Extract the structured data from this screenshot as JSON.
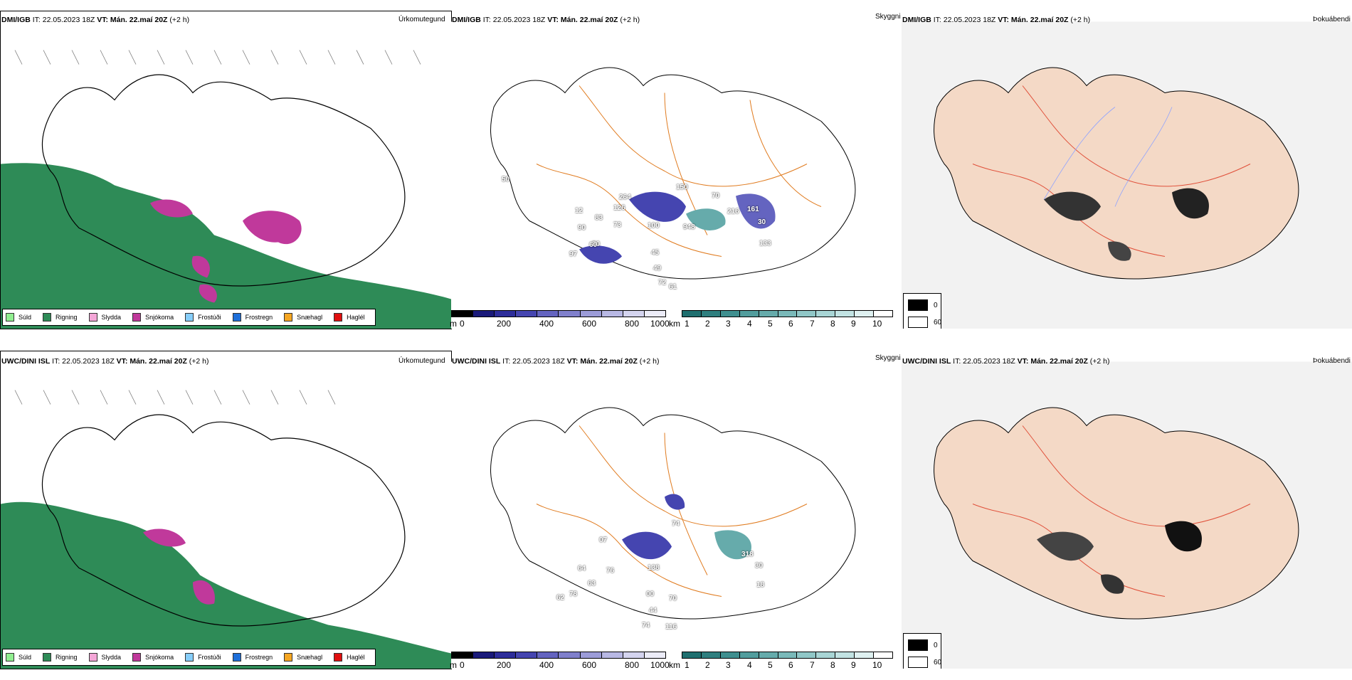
{
  "rows": [
    {
      "model_label": "DMI/IGB",
      "init": "IT: 22.05.2023 18Z",
      "valid": "VT: Mán. 22.maí 20Z",
      "lead": "(+2 h)"
    },
    {
      "model_label": "UWC/DINI ISL",
      "init": "IT: 22.05.2023 18Z",
      "valid": "VT: Mán. 22.maí 20Z",
      "lead": "(+2 h)"
    }
  ],
  "panel_titles": {
    "precip_type": "Úrkomutegund",
    "visibility": "Skyggni",
    "fog": "Þokuábendi"
  },
  "precip_legend": [
    {
      "label": "Súld",
      "color": "#90ee90"
    },
    {
      "label": "Rigning",
      "color": "#2e8b57"
    },
    {
      "label": "Slydda",
      "color": "#f4a6d7"
    },
    {
      "label": "Snjókoma",
      "color": "#c0399b"
    },
    {
      "label": "Frostúði",
      "color": "#87cefa"
    },
    {
      "label": "Frostregn",
      "color": "#1e6fd9"
    },
    {
      "label": "Snæhagl",
      "color": "#f5a623"
    },
    {
      "label": "Haglél",
      "color": "#e01010"
    }
  ],
  "ceiling_scale": {
    "unit": "m",
    "ticks": [
      "0",
      "200",
      "400",
      "600",
      "800",
      "1000"
    ],
    "colors": [
      "#000000",
      "#1a1a7a",
      "#2d2d9a",
      "#4545b0",
      "#6464c0",
      "#8080cc",
      "#9c9cd8",
      "#b8b8e4",
      "#d4d4ef",
      "#ececf8"
    ]
  },
  "visibility_scale": {
    "unit": "km",
    "ticks": [
      "1",
      "2",
      "3",
      "4",
      "5",
      "6",
      "7",
      "8",
      "9",
      "10"
    ],
    "colors": [
      "#1f6f6f",
      "#2f7f7f",
      "#3f8f8f",
      "#529d9d",
      "#66abab",
      "#7ab9b9",
      "#90c7c7",
      "#a8d5d5",
      "#c2e3e3",
      "#dff1f1",
      "#ffffff"
    ]
  },
  "fog_legend": [
    {
      "label": "0",
      "color": "#000000"
    },
    {
      "label": "60",
      "color": "#ffffff"
    }
  ],
  "ceiling_labels_top": [
    "264",
    "126",
    "12",
    "83",
    "73",
    "100",
    "948",
    "150",
    "70",
    "216",
    "161",
    "30",
    "133",
    "50",
    "45",
    "49",
    "72",
    "61",
    "97",
    "60",
    "90",
    "50"
  ],
  "ceiling_labels_bottom": [
    "74",
    "318",
    "30",
    "138",
    "76",
    "63",
    "62",
    "78",
    "00",
    "44",
    "70",
    "74",
    "116",
    "64",
    "07",
    "18"
  ]
}
